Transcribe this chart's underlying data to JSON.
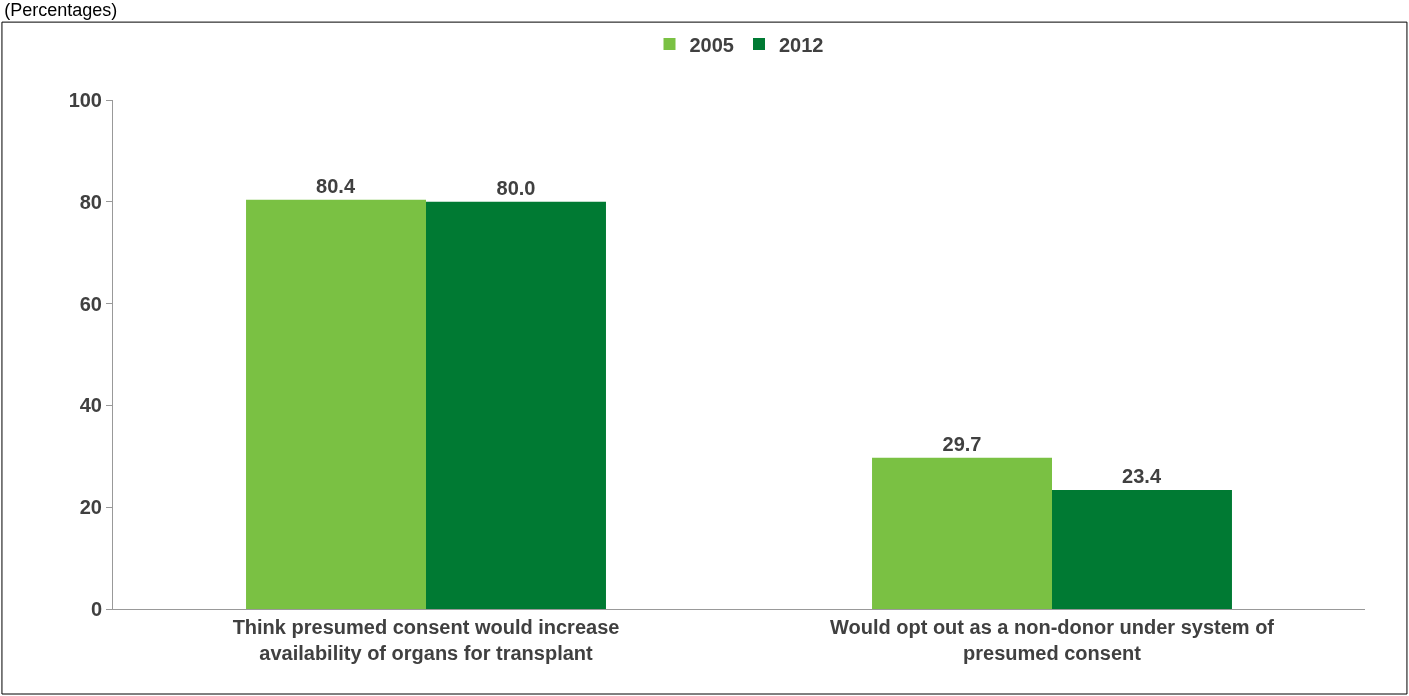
{
  "chart_data": {
    "type": "bar",
    "title": "(Percentages)",
    "categories": [
      "Think presumed consent would increase\navailability of organs for transplant",
      "Would opt out as a non-donor under system of\npresumed consent"
    ],
    "series": [
      {
        "name": "2005",
        "color": "#7ac143",
        "values": [
          80.4,
          29.7
        ],
        "value_labels": [
          "80.4",
          "29.7"
        ]
      },
      {
        "name": "2012",
        "color": "#007a33",
        "values": [
          80.0,
          23.4
        ],
        "value_labels": [
          "80.0",
          "23.4"
        ]
      }
    ],
    "ylim": [
      0,
      100
    ],
    "yticks": [
      0,
      20,
      40,
      60,
      80,
      100
    ],
    "legend": "top"
  }
}
